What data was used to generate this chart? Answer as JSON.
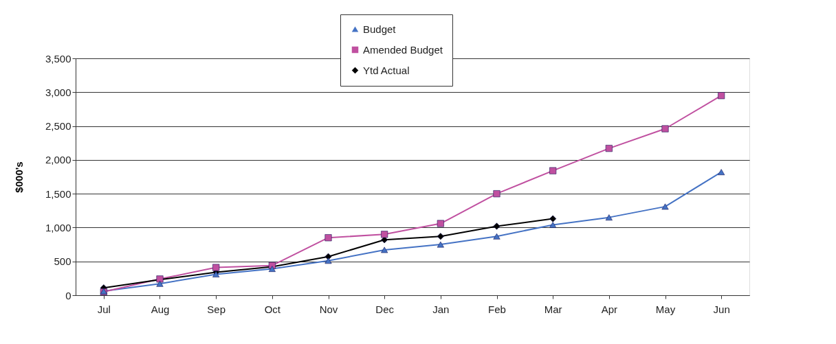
{
  "chart_data": {
    "type": "line",
    "ylabel": "$000's",
    "categories": [
      "Jul",
      "Aug",
      "Sep",
      "Oct",
      "Nov",
      "Dec",
      "Jan",
      "Feb",
      "Mar",
      "Apr",
      "May",
      "Jun"
    ],
    "series": [
      {
        "name": "Budget",
        "color": "#4472c4",
        "marker": "triangle",
        "values": [
          60,
          170,
          310,
          390,
          510,
          670,
          750,
          870,
          1040,
          1150,
          1310,
          1820
        ]
      },
      {
        "name": "Amended Budget",
        "color": "#c050a0",
        "marker": "square",
        "values": [
          50,
          240,
          410,
          440,
          850,
          900,
          1060,
          1500,
          1840,
          2170,
          2460,
          2950
        ]
      },
      {
        "name": "Ytd Actual",
        "color": "#000000",
        "marker": "diamond",
        "values": [
          110,
          230,
          340,
          420,
          570,
          820,
          870,
          1020,
          1130,
          null,
          null,
          null
        ]
      }
    ],
    "ylim": [
      0,
      3500
    ],
    "yticks": [
      0,
      500,
      {
        "value": 1000,
        "label": "1,000"
      },
      {
        "value": 1500,
        "label": "1,500"
      },
      {
        "value": 2000,
        "label": "2,000"
      },
      {
        "value": 2500,
        "label": "2,500"
      },
      {
        "value": 3000,
        "label": "3,000"
      },
      {
        "value": 3500,
        "label": "3,500"
      }
    ],
    "grid": "y",
    "legend": "top",
    "line_style": "solid"
  }
}
